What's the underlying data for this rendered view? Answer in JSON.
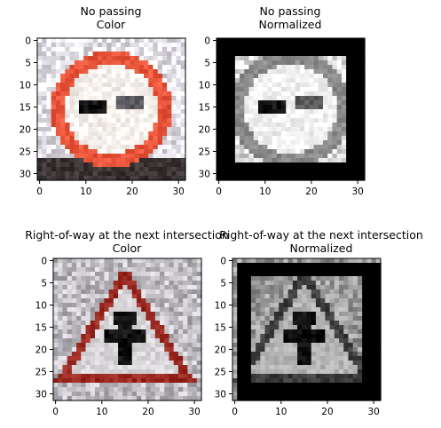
{
  "chart_data": [
    {
      "type": "image",
      "title_line1": "No passing",
      "title_line2": "Color",
      "xticks": [
        0,
        10,
        20,
        30
      ],
      "yticks": [
        0,
        5,
        10,
        15,
        20,
        25,
        30
      ],
      "xlim": [
        -0.5,
        31.5
      ],
      "ylim": [
        31.5,
        -0.5
      ],
      "image": {
        "mode": "color",
        "content": "circular red-rimmed prohibition sign with black and grey cars",
        "ring_color": "#e8553a",
        "inner_color": "#f7f2ee",
        "background_color": "#e6e4ea",
        "dark_bottom_color": "#3a3434"
      }
    },
    {
      "type": "image",
      "title_line1": "No passing",
      "title_line2": "Normalized",
      "xticks": [
        0,
        10,
        20,
        30
      ],
      "yticks": [
        0,
        5,
        10,
        15,
        20,
        25,
        30
      ],
      "xlim": [
        -0.5,
        31.5
      ],
      "ylim": [
        31.5,
        -0.5
      ],
      "image": {
        "mode": "grayscale",
        "content": "circular sign with grey cars, thick black border",
        "ring_color": "#8a8a8a",
        "inner_color": "#f2f2f2",
        "background_color": "#dcdcdc",
        "border_color": "#000000"
      }
    },
    {
      "type": "image",
      "title_line1": "Right-of-way at the next intersection",
      "title_line2": "Color",
      "xticks": [
        0,
        10,
        20,
        30
      ],
      "yticks": [
        0,
        5,
        10,
        15,
        20,
        25,
        30
      ],
      "xlim": [
        -0.5,
        31.5
      ],
      "ylim": [
        31.5,
        -0.5
      ],
      "image": {
        "mode": "color",
        "content": "red-bordered triangular warning sign with black intersection symbol",
        "ring_color": "#9a2a22",
        "inner_color": "#d9d6da",
        "background_color": "#bfbcc2",
        "symbol_color": "#111111"
      }
    },
    {
      "type": "image",
      "title_line1": "Right-of-way at the next intersection",
      "title_line2": "Normalized",
      "xticks": [
        0,
        10,
        20,
        30
      ],
      "yticks": [
        0,
        5,
        10,
        15,
        20,
        25,
        30
      ],
      "xlim": [
        -0.5,
        31.5
      ],
      "ylim": [
        31.5,
        -0.5
      ],
      "image": {
        "mode": "grayscale",
        "content": "triangular sign with black intersection symbol, thick black border",
        "ring_color": "#3c3c3c",
        "inner_color": "#b4b4b4",
        "background_color": "#9a9a9a",
        "symbol_color": "#0c0c0c",
        "border_color": "#000000"
      }
    }
  ]
}
